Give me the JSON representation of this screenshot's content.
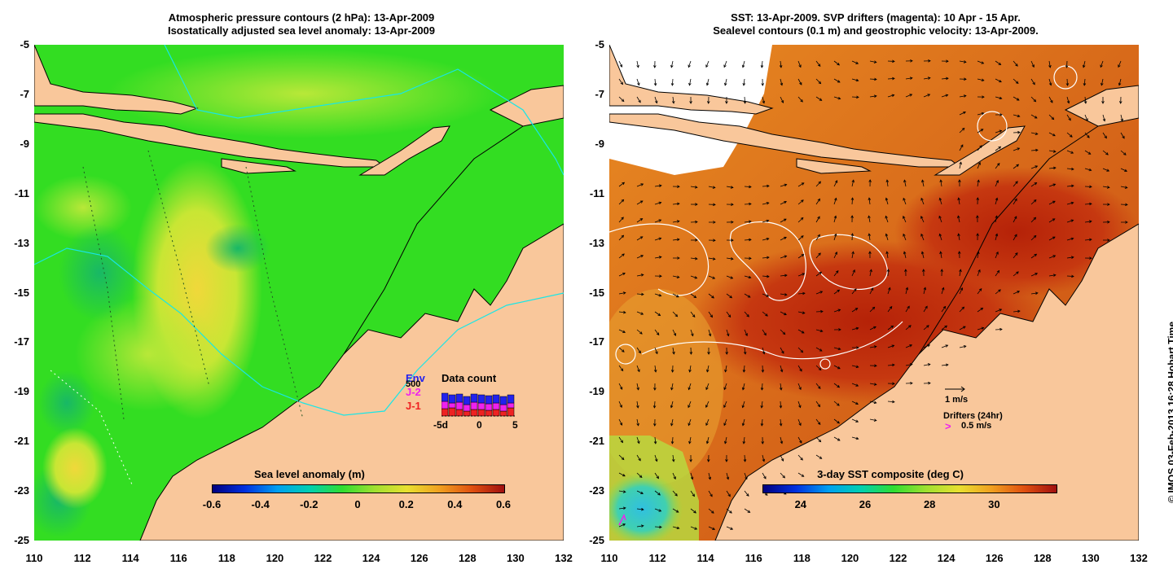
{
  "left_panel": {
    "title_line1": "Atmospheric pressure contours (2 hPa): 13-Apr-2009",
    "title_line2": "Isostatically adjusted sea level anomaly: 13-Apr-2009",
    "colorbar_title": "Sea level anomaly (m)",
    "colorbar_ticks": [
      "-0.6",
      "-0.4",
      "-0.2",
      "0",
      "0.2",
      "0.4",
      "0.6"
    ],
    "inset": {
      "title": "Data count",
      "y_label": "500",
      "legend": [
        "Env",
        "J-2",
        "J-1"
      ],
      "legend_colors": [
        "#2222ee",
        "#ee22ee",
        "#ee2222"
      ],
      "x_ticks": [
        "-5d",
        "0",
        "5"
      ]
    }
  },
  "right_panel": {
    "title_line1": "SST: 13-Apr-2009. SVP drifters (magenta): 10 Apr - 15 Apr.",
    "title_line2": "Sealevel contours (0.1 m) and geostrophic velocity: 13-Apr-2009.",
    "colorbar_title": "3-day SST composite (deg C)",
    "colorbar_ticks": [
      "24",
      "26",
      "28",
      "30"
    ],
    "velocity_legend": "1 m/s",
    "drifters_label": "Drifters (24hr)",
    "drifter_speed": "0.5 m/s"
  },
  "axes": {
    "y_ticks": [
      "-5",
      "-7",
      "-9",
      "-11",
      "-13",
      "-15",
      "-17",
      "-19",
      "-21",
      "-23",
      "-25"
    ],
    "x_ticks": [
      "110",
      "112",
      "114",
      "116",
      "118",
      "120",
      "122",
      "124",
      "126",
      "128",
      "130",
      "132"
    ]
  },
  "credit": "© IMOS 03-Feb-2013 16:28 Hobart Time",
  "colors": {
    "land": "#f9c79b",
    "sla_base": "#33dd22",
    "sla_high": "#e8e030",
    "sst_warm": "#c0300a",
    "sst_mid": "#e08020"
  }
}
